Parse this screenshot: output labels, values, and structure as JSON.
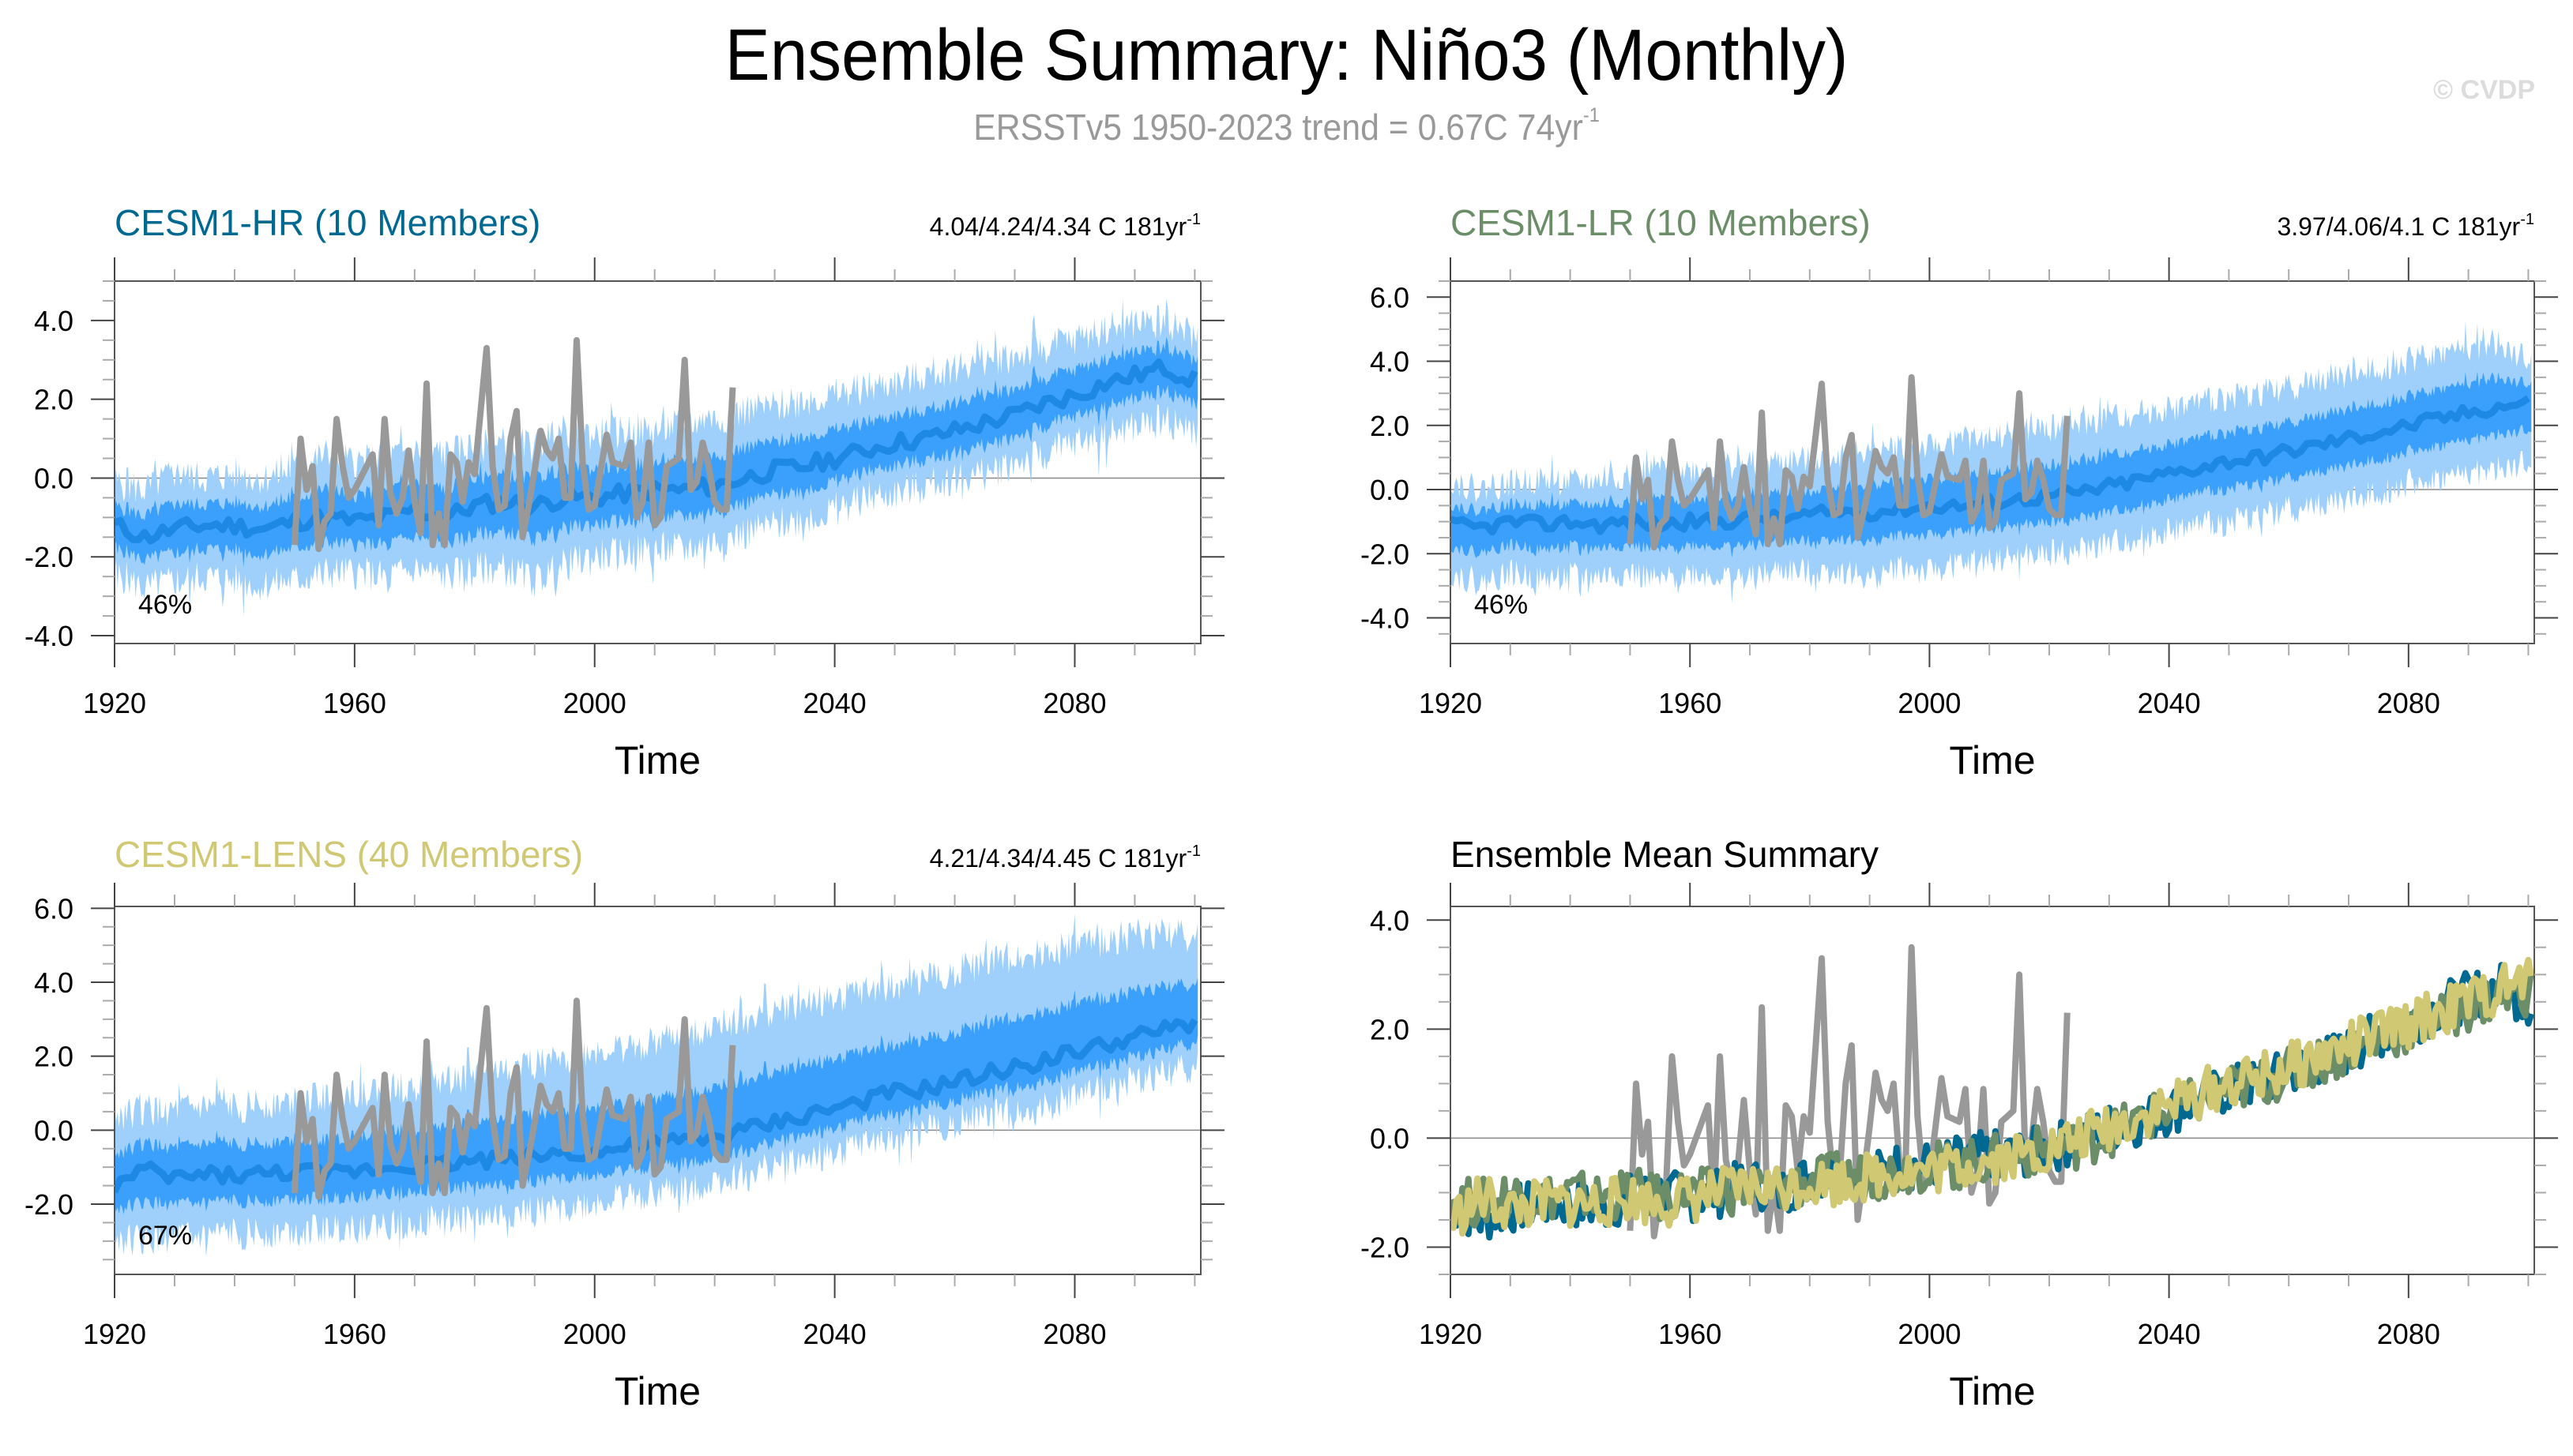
{
  "header": {
    "title": "Ensemble Summary: Niño3 (Monthly)",
    "subtitle_main": "ERSSTv5 1950-2023 trend = 0.67C 74yr",
    "subtitle_sup": "-1",
    "watermark": "© CVDP"
  },
  "colors": {
    "obs": "#999999",
    "band_outer": "#9fd0fb",
    "band_inner": "#3aa0fb",
    "mean": "#1e88e5",
    "hr": "#006991",
    "lr": "#6b8e68",
    "lens": "#d0c872",
    "zero_line": "#888888"
  },
  "chart_data": [
    {
      "id": "hr",
      "type": "area",
      "title": "CESM1-HR (10 Members)",
      "title_color": "#006991",
      "trend_text": "4.04/4.24/4.34 C 181yr",
      "trend_sup": "-1",
      "percent_label": "46%",
      "xlabel": "Time",
      "ylabel": "",
      "xlim": [
        1920,
        2101
      ],
      "ylim": [
        -4.2,
        5.0
      ],
      "xticks": [
        1920,
        1960,
        2000,
        2040,
        2080
      ],
      "yticks": [
        -4.0,
        -2.0,
        0.0,
        2.0,
        4.0
      ],
      "ytick_labels": [
        "-4.0",
        "-2.0",
        "0.0",
        "2.0",
        "4.0"
      ],
      "ensemble_mean": {
        "x": [
          1920,
          1925,
          1930,
          1935,
          1940,
          1945,
          1950,
          1955,
          1960,
          1965,
          1970,
          1975,
          1980,
          1985,
          1990,
          1995,
          2000,
          2005,
          2010,
          2015,
          2020,
          2025,
          2030,
          2035,
          2040,
          2045,
          2050,
          2055,
          2060,
          2065,
          2070,
          2075,
          2080,
          2085,
          2090,
          2095,
          2100
        ],
        "y": [
          -1.2,
          -1.5,
          -1.3,
          -1.2,
          -1.2,
          -1.3,
          -1.1,
          -1.0,
          -1.1,
          -1.0,
          -0.8,
          -1.0,
          -0.7,
          -0.6,
          -0.7,
          -0.5,
          -0.5,
          -0.4,
          -0.3,
          -0.3,
          -0.2,
          0.0,
          0.2,
          0.3,
          0.5,
          0.7,
          0.9,
          1.0,
          1.2,
          1.4,
          1.6,
          1.9,
          2.1,
          2.4,
          2.6,
          2.8,
          2.5
        ]
      },
      "envelope_min": [
        -2.4,
        -2.8,
        -2.6,
        -2.5,
        -2.6,
        -2.7,
        -2.6,
        -2.4,
        -2.4,
        -2.5,
        -2.3,
        -2.5,
        -2.3,
        -2.3,
        -2.6,
        -2.2,
        -2.0,
        -1.9,
        -1.8,
        -1.8,
        -1.6,
        -1.4,
        -1.2,
        -1.0,
        -0.8,
        -0.5,
        -0.4,
        -0.2,
        0.0,
        0.1,
        0.4,
        0.6,
        0.9,
        1.1,
        1.3,
        1.5,
        1.2
      ],
      "envelope_max": [
        -0.1,
        -0.3,
        0.1,
        0.0,
        0.1,
        0.0,
        0.2,
        0.6,
        0.4,
        0.5,
        0.7,
        0.6,
        0.8,
        0.9,
        0.8,
        1.2,
        1.1,
        1.2,
        1.2,
        1.4,
        1.5,
        1.7,
        1.8,
        2.0,
        2.1,
        2.3,
        2.4,
        2.6,
        2.8,
        3.0,
        3.1,
        3.3,
        3.5,
        3.8,
        3.9,
        4.0,
        3.6
      ],
      "obs": {
        "x": [
          1950,
          1951,
          1952,
          1953,
          1954,
          1955,
          1956,
          1957,
          1958,
          1959,
          1960,
          1963,
          1964,
          1965,
          1966,
          1967,
          1968,
          1969,
          1970,
          1971,
          1972,
          1973,
          1974,
          1975,
          1976,
          1977,
          1978,
          1979,
          1980,
          1982,
          1983,
          1984,
          1985,
          1986,
          1987,
          1988,
          1989,
          1990,
          1991,
          1992,
          1993,
          1994,
          1995,
          1996,
          1997,
          1998,
          1999,
          2000,
          2002,
          2003,
          2005,
          2006,
          2007,
          2008,
          2009,
          2010,
          2011,
          2012,
          2014,
          2015,
          2016,
          2017,
          2018,
          2019,
          2020,
          2021,
          2022,
          2023
        ],
        "y": [
          -1.7,
          1.0,
          -0.3,
          0.3,
          -1.8,
          -1.1,
          -0.9,
          1.5,
          0.3,
          -0.5,
          -0.3,
          0.6,
          -1.2,
          1.5,
          -0.4,
          -0.9,
          -0.5,
          0.7,
          -0.6,
          -1.4,
          2.4,
          -1.7,
          -0.9,
          -1.7,
          0.6,
          0.4,
          -0.6,
          0.4,
          0.1,
          3.3,
          0.3,
          -0.8,
          -0.7,
          1.0,
          1.7,
          -1.5,
          -0.7,
          0.2,
          1.2,
          0.7,
          0.5,
          1.0,
          -0.5,
          -0.5,
          3.5,
          0.4,
          -0.8,
          -0.7,
          1.1,
          0.4,
          0.3,
          0.9,
          -1.0,
          -0.6,
          0.9,
          -1.2,
          -1.0,
          0.3,
          0.5,
          3.0,
          -0.3,
          -0.1,
          0.9,
          0.3,
          -0.6,
          -0.8,
          -0.8,
          2.3
        ]
      }
    },
    {
      "id": "lr",
      "type": "area",
      "title": "CESM1-LR (10 Members)",
      "title_color": "#6b8e68",
      "trend_text": "3.97/4.06/4.1 C 181yr",
      "trend_sup": "-1",
      "percent_label": "46%",
      "xlabel": "Time",
      "ylabel": "",
      "xlim": [
        1920,
        2101
      ],
      "ylim": [
        -4.8,
        6.5
      ],
      "xticks": [
        1920,
        1960,
        2000,
        2040,
        2080
      ],
      "yticks": [
        -4.0,
        -2.0,
        0.0,
        2.0,
        4.0,
        6.0
      ],
      "ytick_labels": [
        "-4.0",
        "-2.0",
        "0.0",
        "2.0",
        "4.0",
        "6.0"
      ],
      "ensemble_mean": {
        "x": [
          1920,
          1925,
          1930,
          1935,
          1940,
          1945,
          1950,
          1955,
          1960,
          1965,
          1970,
          1975,
          1980,
          1985,
          1990,
          1995,
          2000,
          2005,
          2010,
          2015,
          2020,
          2025,
          2030,
          2035,
          2040,
          2045,
          2050,
          2055,
          2060,
          2065,
          2070,
          2075,
          2080,
          2085,
          2090,
          2095,
          2100
        ],
        "y": [
          -1.1,
          -1.2,
          -1.0,
          -1.1,
          -1.0,
          -1.1,
          -1.0,
          -1.1,
          -1.0,
          -1.0,
          -0.9,
          -0.9,
          -0.8,
          -0.7,
          -0.7,
          -0.6,
          -0.5,
          -0.5,
          -0.4,
          -0.3,
          -0.2,
          -0.1,
          0.1,
          0.3,
          0.5,
          0.7,
          0.9,
          1.0,
          1.2,
          1.4,
          1.6,
          1.8,
          2.0,
          2.2,
          2.4,
          2.6,
          2.7
        ]
      },
      "envelope_min": [
        -2.6,
        -2.9,
        -2.6,
        -2.8,
        -2.7,
        -2.7,
        -2.6,
        -2.9,
        -2.6,
        -2.7,
        -2.8,
        -2.5,
        -2.6,
        -2.5,
        -2.8,
        -2.4,
        -2.6,
        -2.3,
        -2.2,
        -2.1,
        -2.0,
        -1.9,
        -1.7,
        -1.5,
        -1.3,
        -1.1,
        -1.0,
        -0.8,
        -0.6,
        -0.5,
        -0.3,
        -0.1,
        0.2,
        0.3,
        0.5,
        0.6,
        0.8
      ],
      "envelope_max": [
        0.3,
        0.0,
        0.2,
        0.3,
        0.2,
        0.3,
        0.4,
        0.7,
        0.6,
        0.7,
        0.8,
        0.9,
        0.9,
        1.1,
        1.2,
        1.3,
        1.3,
        1.5,
        1.6,
        1.8,
        1.9,
        2.0,
        2.2,
        2.4,
        2.5,
        2.7,
        2.9,
        3.0,
        3.2,
        3.4,
        3.6,
        3.8,
        4.0,
        4.2,
        4.4,
        4.5,
        4.0
      ],
      "obs": {
        "ref": "hr"
      }
    },
    {
      "id": "lens",
      "type": "area",
      "title": "CESM1-LENS (40 Members)",
      "title_color": "#d0c872",
      "trend_text": "4.21/4.34/4.45 C 181yr",
      "trend_sup": "-1",
      "percent_label": "67%",
      "xlabel": "Time",
      "ylabel": "",
      "xlim": [
        1920,
        2101
      ],
      "ylim": [
        -3.9,
        6.05
      ],
      "xticks": [
        1920,
        1960,
        2000,
        2040,
        2080
      ],
      "yticks": [
        -2.0,
        0.0,
        2.0,
        4.0,
        6.0
      ],
      "ytick_labels": [
        "-2.0",
        "0.0",
        "2.0",
        "4.0",
        "6.0"
      ],
      "ensemble_mean": {
        "x": [
          1920,
          1925,
          1930,
          1935,
          1940,
          1945,
          1950,
          1955,
          1960,
          1965,
          1970,
          1975,
          1980,
          1985,
          1990,
          1995,
          2000,
          2005,
          2010,
          2015,
          2020,
          2025,
          2030,
          2035,
          2040,
          2045,
          2050,
          2055,
          2060,
          2065,
          2070,
          2075,
          2080,
          2085,
          2090,
          2095,
          2100
        ],
        "y": [
          -1.5,
          -1.1,
          -1.3,
          -1.2,
          -1.2,
          -1.2,
          -1.1,
          -1.2,
          -1.1,
          -1.0,
          -0.9,
          -0.9,
          -0.8,
          -0.8,
          -0.7,
          -0.6,
          -0.6,
          -0.5,
          -0.4,
          -0.3,
          -0.2,
          0.0,
          0.2,
          0.4,
          0.6,
          0.8,
          1.0,
          1.1,
          1.3,
          1.5,
          1.7,
          1.9,
          2.1,
          2.3,
          2.5,
          2.7,
          2.9
        ]
      },
      "envelope_min": [
        -2.9,
        -3.0,
        -2.9,
        -2.9,
        -2.8,
        -2.8,
        -2.7,
        -2.7,
        -2.6,
        -2.6,
        -2.5,
        -2.4,
        -2.4,
        -2.3,
        -2.2,
        -2.1,
        -2.0,
        -1.8,
        -1.7,
        -1.6,
        -1.4,
        -1.2,
        -1.0,
        -0.8,
        -0.6,
        -0.4,
        -0.2,
        0.0,
        0.2,
        0.4,
        0.5,
        0.7,
        0.9,
        1.1,
        1.3,
        1.5,
        1.7
      ],
      "envelope_max": [
        0.4,
        0.5,
        0.5,
        0.6,
        0.6,
        0.7,
        0.8,
        0.9,
        1.0,
        1.1,
        1.2,
        1.3,
        1.5,
        1.6,
        1.8,
        1.9,
        2.1,
        2.2,
        2.4,
        2.6,
        2.8,
        3.0,
        3.2,
        3.4,
        3.6,
        3.7,
        3.9,
        4.1,
        4.3,
        4.5,
        4.7,
        4.8,
        5.0,
        5.1,
        5.2,
        5.3,
        5.2
      ],
      "obs": {
        "ref": "hr"
      }
    },
    {
      "id": "summary",
      "type": "line",
      "title": "Ensemble Mean Summary",
      "title_color": "#000000",
      "xlabel": "Time",
      "ylabel": "",
      "xlim": [
        1920,
        2101
      ],
      "ylim": [
        -2.5,
        4.25
      ],
      "xticks": [
        1920,
        1960,
        2000,
        2040,
        2080
      ],
      "yticks": [
        -2.0,
        0.0,
        2.0,
        4.0
      ],
      "ytick_labels": [
        "-2.0",
        "0.0",
        "2.0",
        "4.0"
      ],
      "series": [
        {
          "name": "CESM1-HR",
          "color": "#006991",
          "ref_mean": "hr"
        },
        {
          "name": "CESM1-LR",
          "color": "#6b8e68",
          "ref_mean": "lr"
        },
        {
          "name": "CESM1-LENS",
          "color": "#d0c872",
          "ref_mean": "lens"
        },
        {
          "name": "ERSSTv5",
          "color": "#999999",
          "ref_obs": "hr"
        }
      ]
    }
  ]
}
